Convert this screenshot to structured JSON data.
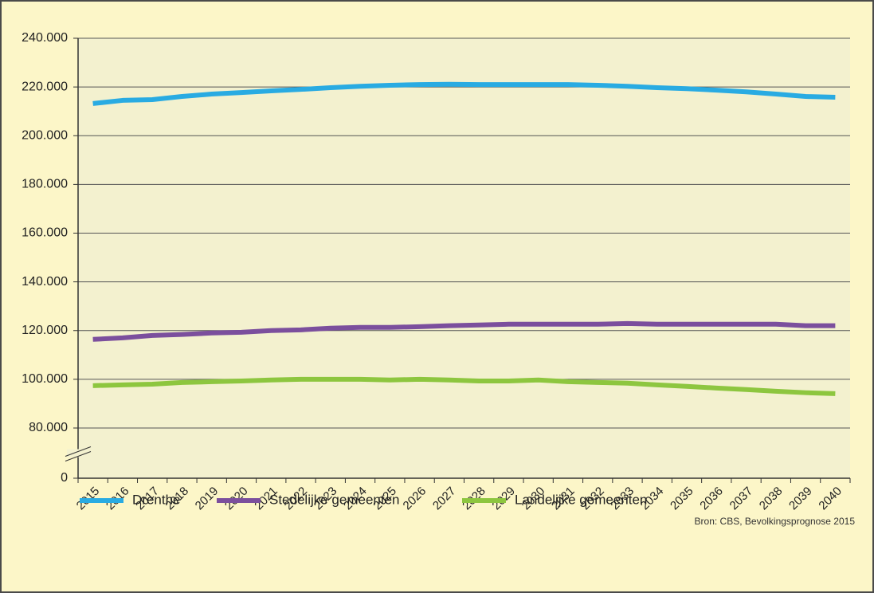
{
  "chart_data": {
    "type": "line",
    "categories": [
      "2015",
      "2016",
      "2017",
      "2018",
      "2019",
      "2020",
      "2021",
      "2022",
      "2023",
      "2024",
      "2025",
      "2026",
      "2027",
      "2028",
      "2029",
      "2030",
      "2031",
      "2032",
      "2033",
      "2034",
      "2035",
      "2036",
      "2037",
      "2038",
      "2039",
      "2040"
    ],
    "series": [
      {
        "name": "Drenthe",
        "color": "#29abe2",
        "values": [
          213200,
          214500,
          214800,
          216100,
          217100,
          217700,
          218400,
          219000,
          219700,
          220300,
          220700,
          221000,
          221100,
          221000,
          221000,
          221000,
          221000,
          220700,
          220300,
          219700,
          219300,
          218700,
          218000,
          217100,
          216100,
          215800
        ]
      },
      {
        "name": "Stedelijke gemeenten",
        "color": "#7b4f9d",
        "values": [
          116400,
          117000,
          118000,
          118400,
          119000,
          119300,
          120000,
          120300,
          121000,
          121300,
          121300,
          121600,
          122000,
          122300,
          122600,
          122600,
          122600,
          122600,
          122900,
          122600,
          122600,
          122600,
          122600,
          122600,
          122000,
          122000
        ]
      },
      {
        "name": "Landelijke gemeenten",
        "color": "#8dc63f",
        "values": [
          97400,
          97700,
          98000,
          98700,
          99000,
          99300,
          99700,
          100000,
          100000,
          100000,
          99700,
          100000,
          99700,
          99300,
          99300,
          99700,
          99000,
          98700,
          98400,
          97700,
          97100,
          96400,
          95800,
          95100,
          94500,
          94100
        ]
      }
    ],
    "ylim": [
      0,
      240000
    ],
    "yticks": [
      0,
      {
        "value": 80000,
        "label": "80.000"
      },
      {
        "value": 100000,
        "label": "100.000"
      },
      {
        "value": 120000,
        "label": "120.000"
      },
      {
        "value": 140000,
        "label": "140.000"
      },
      {
        "value": 160000,
        "label": "160.000"
      },
      {
        "value": 180000,
        "label": "180.000"
      },
      {
        "value": 200000,
        "label": "200.000"
      },
      {
        "value": 220000,
        "label": "220.000"
      },
      {
        "value": 240000,
        "label": "240.000"
      }
    ],
    "axis_break": true,
    "grid": true,
    "legend": "bottom",
    "source": "Bron: CBS, Bevolkingsprognose 2015"
  }
}
